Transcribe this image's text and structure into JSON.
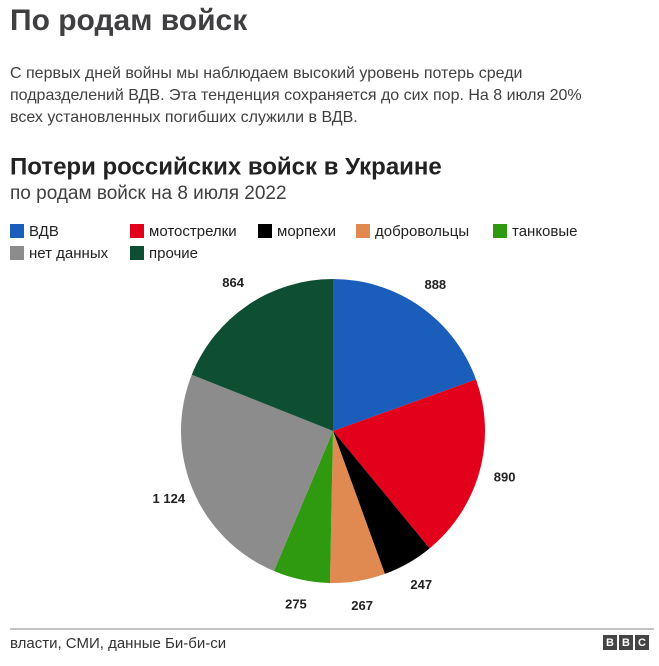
{
  "article": {
    "heading": "По родам войск",
    "text": "С первых дней войны мы наблюдаем высокий уровень потерь среди подразделений ВДВ. Эта тенденция сохраняется до сих пор. На 8 июля 20% всех установленных погибших служили в ВДВ."
  },
  "chart_data": {
    "type": "pie",
    "title": "Потери российских войск в Украине",
    "subtitle": "по родам войск на 8 июля 2022",
    "categories": [
      "ВДВ",
      "мотострелки",
      "морпехи",
      "добровольцы",
      "танковые",
      "нет данных",
      "прочие"
    ],
    "values": [
      888,
      890,
      247,
      267,
      275,
      1124,
      864
    ],
    "value_labels": [
      "888",
      "890",
      "247",
      "267",
      "275",
      "1 124",
      "864"
    ],
    "colors": [
      "#1a5dba",
      "#e3001b",
      "#000000",
      "#e08a52",
      "#2f9a10",
      "#8c8c8c",
      "#0e4f33"
    ],
    "source": "власти, СМИ, данные Би-би-си"
  },
  "footer": {
    "logo": [
      "B",
      "B",
      "C"
    ]
  }
}
